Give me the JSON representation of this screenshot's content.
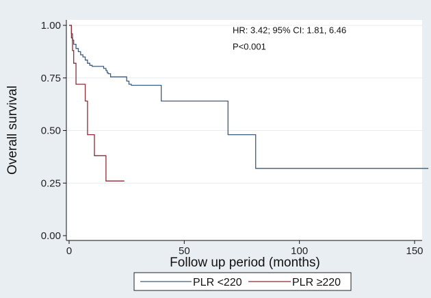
{
  "chart_data": {
    "type": "line",
    "subtype": "kaplan-meier step",
    "title": "",
    "xlabel": "Follow up period (months)",
    "ylabel": "Overall survival",
    "xlim": [
      0,
      157
    ],
    "ylim": [
      0,
      1
    ],
    "x_ticks": [
      0,
      50,
      100,
      150
    ],
    "y_ticks": [
      0.0,
      0.25,
      0.5,
      0.75,
      1.0
    ],
    "x_tick_labels": [
      "0",
      "50",
      "100",
      "150"
    ],
    "y_tick_labels": [
      "0.00",
      "0.25",
      "0.50",
      "0.75",
      "1.00"
    ],
    "grid": "horizontal",
    "legend_position": "bottom",
    "annotations": [
      {
        "text": "HR: 3.42; 95% CI: 1.81, 6.46",
        "x": 71,
        "y": 0.962
      },
      {
        "text": "P<0.001",
        "x": 71,
        "y": 0.885
      }
    ],
    "series": [
      {
        "name": "PLR <220",
        "color": "#3c5a7a",
        "x": [
          0,
          1,
          1.5,
          2,
          3,
          4,
          5,
          6,
          7,
          8,
          9,
          10,
          15,
          16,
          16.5,
          17,
          18,
          25,
          26,
          27,
          40,
          69,
          81,
          156
        ],
        "y": [
          1.0,
          0.96,
          0.93,
          0.91,
          0.89,
          0.875,
          0.86,
          0.85,
          0.835,
          0.82,
          0.81,
          0.805,
          0.795,
          0.785,
          0.775,
          0.77,
          0.755,
          0.735,
          0.72,
          0.715,
          0.64,
          0.48,
          0.32,
          0.32
        ]
      },
      {
        "name": "PLR ≥220",
        "color": "#8b2a32",
        "x": [
          0,
          1,
          1.5,
          2,
          3,
          7,
          8,
          9,
          11,
          16,
          24
        ],
        "y": [
          1.0,
          0.94,
          0.88,
          0.82,
          0.72,
          0.64,
          0.48,
          0.48,
          0.38,
          0.26,
          0.26
        ]
      }
    ]
  }
}
